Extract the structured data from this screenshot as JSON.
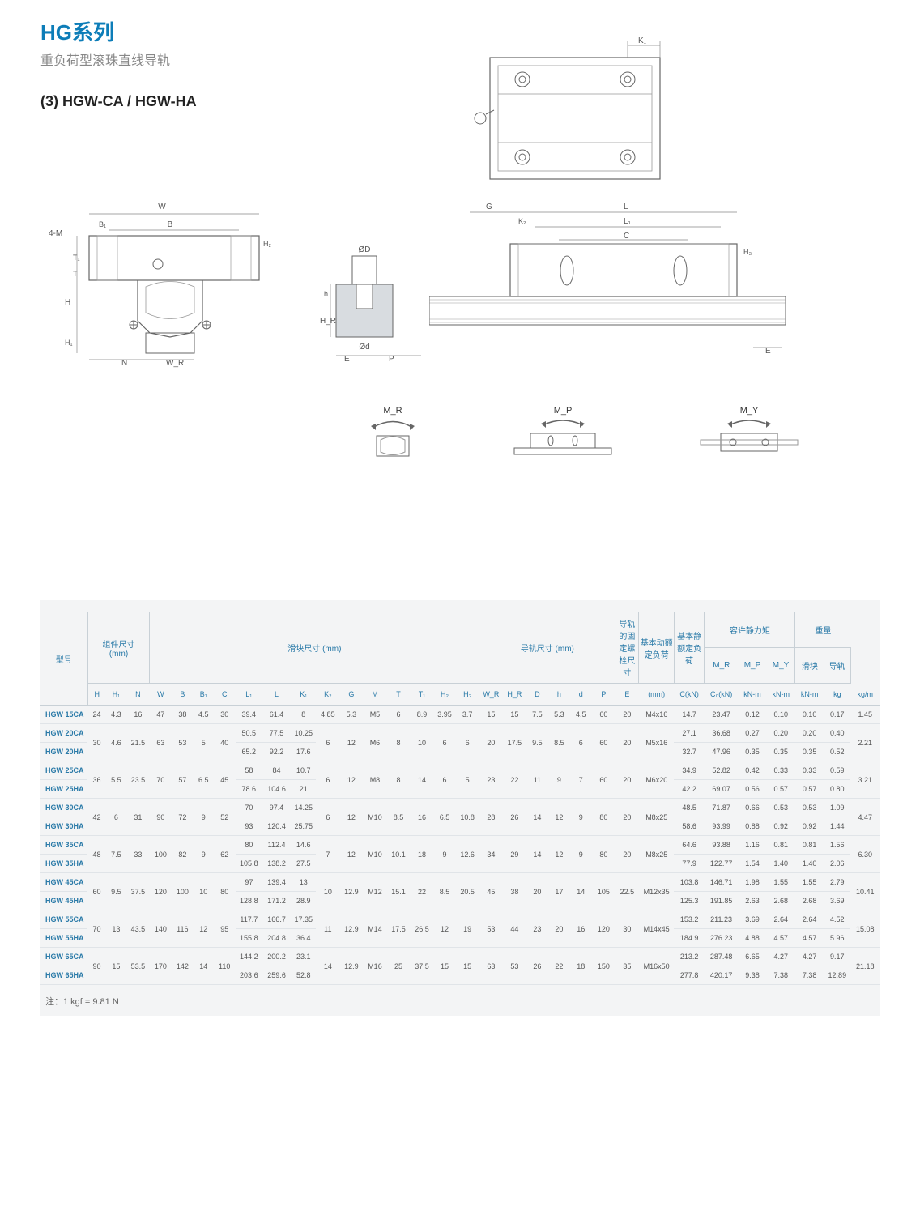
{
  "header": {
    "title": "HG系列",
    "subtitle": "重负荷型滚珠直线导轨",
    "section": "(3) HGW-CA / HGW-HA"
  },
  "diagram_labels": {
    "top": {
      "K1": "K₁"
    },
    "cross": {
      "W": "W",
      "B": "B",
      "B1": "B₁",
      "4M": "4-M",
      "T1": "T₁",
      "T": "T",
      "H": "H",
      "H1": "H₁",
      "H2": "H₂",
      "N": "N",
      "WR": "W_R"
    },
    "rail": {
      "oD": "ØD",
      "od": "Ød",
      "h": "h",
      "HR": "H_R",
      "E": "E",
      "P": "P"
    },
    "side": {
      "G": "G",
      "L": "L",
      "K2": "K₂",
      "L1": "L₁",
      "C": "C",
      "H3": "H₃",
      "E2": "E"
    },
    "moments": {
      "MR": "M_R",
      "MP": "M_P",
      "MY": "M_Y"
    }
  },
  "table": {
    "group_headers": [
      {
        "label": "型号",
        "span": 1
      },
      {
        "label": "组件尺寸",
        "sub": "(mm)",
        "span": 3
      },
      {
        "label": "滑块尺寸 (mm)",
        "span": 14
      },
      {
        "label": "导轨尺寸 (mm)",
        "span": 6
      },
      {
        "label": "导轨的固定螺栓尺寸",
        "span": 1
      },
      {
        "label": "基本动额定负荷",
        "span": 1
      },
      {
        "label": "基本静额定负荷",
        "span": 1
      },
      {
        "label": "容许静力矩",
        "span": 3
      },
      {
        "label": "重量",
        "span": 2
      }
    ],
    "sub_headers_row1": [
      "",
      "",
      "",
      "",
      "",
      "",
      "",
      "",
      "",
      "",
      "",
      "",
      "",
      "",
      "",
      "",
      "",
      "",
      "",
      "",
      "",
      "",
      "",
      "",
      "",
      "",
      "",
      "M_R",
      "M_P",
      "M_Y",
      "滑块",
      "导轨"
    ],
    "sub_headers_row2": [
      "",
      "H",
      "H₁",
      "N",
      "W",
      "B",
      "B₁",
      "C",
      "L₁",
      "L",
      "K₁",
      "K₂",
      "G",
      "M",
      "T",
      "T₁",
      "H₂",
      "H₃",
      "W_R",
      "H_R",
      "D",
      "h",
      "d",
      "P",
      "E",
      "(mm)",
      "C(kN)",
      "C₀(kN)",
      "kN-m",
      "kN-m",
      "kN-m",
      "kg",
      "kg/m"
    ],
    "rows": [
      {
        "model": "HGW 15CA",
        "cells": [
          "24",
          "4.3",
          "16",
          "47",
          "38",
          "4.5",
          "30",
          "39.4",
          "61.4",
          "8",
          "4.85",
          "5.3",
          "M5",
          "6",
          "8.9",
          "3.95",
          "3.7",
          "15",
          "15",
          "7.5",
          "5.3",
          "4.5",
          "60",
          "20",
          "M4x16",
          "14.7",
          "23.47",
          "0.12",
          "0.10",
          "0.10",
          "0.17",
          "1.45"
        ]
      },
      {
        "model": "HGW 20CA",
        "cells": [
          "30",
          "4.6",
          "21.5",
          "63",
          "53",
          "5",
          "40",
          "50.5",
          "77.5",
          "10.25",
          "6",
          "12",
          "M6",
          "8",
          "10",
          "6",
          "6",
          "20",
          "17.5",
          "9.5",
          "8.5",
          "6",
          "60",
          "20",
          "M5x16",
          "27.1",
          "36.68",
          "0.27",
          "0.20",
          "0.20",
          "0.40",
          "2.21"
        ],
        "mergeNext": [
          1,
          1,
          1,
          1,
          1,
          1,
          1,
          0,
          0,
          0,
          1,
          1,
          1,
          1,
          1,
          1,
          1,
          1,
          1,
          1,
          1,
          1,
          1,
          1,
          1,
          0,
          0,
          0,
          0,
          0,
          0,
          1
        ]
      },
      {
        "model": "HGW 20HA",
        "cells": [
          "",
          "",
          "",
          "",
          "",
          "",
          "",
          "65.2",
          "92.2",
          "17.6",
          "",
          "",
          "",
          "",
          "",
          "",
          "",
          "",
          "",
          "",
          "",
          "",
          "",
          "",
          "",
          "32.7",
          "47.96",
          "0.35",
          "0.35",
          "0.35",
          "0.52",
          ""
        ]
      },
      {
        "model": "HGW 25CA",
        "cells": [
          "36",
          "5.5",
          "23.5",
          "70",
          "57",
          "6.5",
          "45",
          "58",
          "84",
          "10.7",
          "6",
          "12",
          "M8",
          "8",
          "14",
          "6",
          "5",
          "23",
          "22",
          "11",
          "9",
          "7",
          "60",
          "20",
          "M6x20",
          "34.9",
          "52.82",
          "0.42",
          "0.33",
          "0.33",
          "0.59",
          "3.21"
        ],
        "mergeNext": [
          1,
          1,
          1,
          1,
          1,
          1,
          1,
          0,
          0,
          0,
          1,
          1,
          1,
          1,
          1,
          1,
          1,
          1,
          1,
          1,
          1,
          1,
          1,
          1,
          1,
          0,
          0,
          0,
          0,
          0,
          0,
          1
        ]
      },
      {
        "model": "HGW 25HA",
        "cells": [
          "",
          "",
          "",
          "",
          "",
          "",
          "",
          "78.6",
          "104.6",
          "21",
          "",
          "",
          "",
          "",
          "",
          "",
          "",
          "",
          "",
          "",
          "",
          "",
          "",
          "",
          "",
          "42.2",
          "69.07",
          "0.56",
          "0.57",
          "0.57",
          "0.80",
          ""
        ]
      },
      {
        "model": "HGW 30CA",
        "cells": [
          "42",
          "6",
          "31",
          "90",
          "72",
          "9",
          "52",
          "70",
          "97.4",
          "14.25",
          "6",
          "12",
          "M10",
          "8.5",
          "16",
          "6.5",
          "10.8",
          "28",
          "26",
          "14",
          "12",
          "9",
          "80",
          "20",
          "M8x25",
          "48.5",
          "71.87",
          "0.66",
          "0.53",
          "0.53",
          "1.09",
          "4.47"
        ],
        "mergeNext": [
          1,
          1,
          1,
          1,
          1,
          1,
          1,
          0,
          0,
          0,
          1,
          1,
          1,
          1,
          1,
          1,
          1,
          1,
          1,
          1,
          1,
          1,
          1,
          1,
          1,
          0,
          0,
          0,
          0,
          0,
          0,
          1
        ]
      },
      {
        "model": "HGW 30HA",
        "cells": [
          "",
          "",
          "",
          "",
          "",
          "",
          "",
          "93",
          "120.4",
          "25.75",
          "",
          "",
          "",
          "",
          "",
          "",
          "",
          "",
          "",
          "",
          "",
          "",
          "",
          "",
          "",
          "58.6",
          "93.99",
          "0.88",
          "0.92",
          "0.92",
          "1.44",
          ""
        ]
      },
      {
        "model": "HGW 35CA",
        "cells": [
          "48",
          "7.5",
          "33",
          "100",
          "82",
          "9",
          "62",
          "80",
          "112.4",
          "14.6",
          "7",
          "12",
          "M10",
          "10.1",
          "18",
          "9",
          "12.6",
          "34",
          "29",
          "14",
          "12",
          "9",
          "80",
          "20",
          "M8x25",
          "64.6",
          "93.88",
          "1.16",
          "0.81",
          "0.81",
          "1.56",
          "6.30"
        ],
        "mergeNext": [
          1,
          1,
          1,
          1,
          1,
          1,
          1,
          0,
          0,
          0,
          1,
          1,
          1,
          1,
          1,
          1,
          1,
          1,
          1,
          1,
          1,
          1,
          1,
          1,
          1,
          0,
          0,
          0,
          0,
          0,
          0,
          1
        ]
      },
      {
        "model": "HGW 35HA",
        "cells": [
          "",
          "",
          "",
          "",
          "",
          "",
          "",
          "105.8",
          "138.2",
          "27.5",
          "",
          "",
          "",
          "",
          "",
          "",
          "",
          "",
          "",
          "",
          "",
          "",
          "",
          "",
          "",
          "77.9",
          "122.77",
          "1.54",
          "1.40",
          "1.40",
          "2.06",
          ""
        ]
      },
      {
        "model": "HGW 45CA",
        "cells": [
          "60",
          "9.5",
          "37.5",
          "120",
          "100",
          "10",
          "80",
          "97",
          "139.4",
          "13",
          "10",
          "12.9",
          "M12",
          "15.1",
          "22",
          "8.5",
          "20.5",
          "45",
          "38",
          "20",
          "17",
          "14",
          "105",
          "22.5",
          "M12x35",
          "103.8",
          "146.71",
          "1.98",
          "1.55",
          "1.55",
          "2.79",
          "10.41"
        ],
        "mergeNext": [
          1,
          1,
          1,
          1,
          1,
          1,
          1,
          0,
          0,
          0,
          1,
          1,
          1,
          1,
          1,
          1,
          1,
          1,
          1,
          1,
          1,
          1,
          1,
          1,
          1,
          0,
          0,
          0,
          0,
          0,
          0,
          1
        ]
      },
      {
        "model": "HGW 45HA",
        "cells": [
          "",
          "",
          "",
          "",
          "",
          "",
          "",
          "128.8",
          "171.2",
          "28.9",
          "",
          "",
          "",
          "",
          "",
          "",
          "",
          "",
          "",
          "",
          "",
          "",
          "",
          "",
          "",
          "125.3",
          "191.85",
          "2.63",
          "2.68",
          "2.68",
          "3.69",
          ""
        ]
      },
      {
        "model": "HGW 55CA",
        "cells": [
          "70",
          "13",
          "43.5",
          "140",
          "116",
          "12",
          "95",
          "117.7",
          "166.7",
          "17.35",
          "11",
          "12.9",
          "M14",
          "17.5",
          "26.5",
          "12",
          "19",
          "53",
          "44",
          "23",
          "20",
          "16",
          "120",
          "30",
          "M14x45",
          "153.2",
          "211.23",
          "3.69",
          "2.64",
          "2.64",
          "4.52",
          "15.08"
        ],
        "mergeNext": [
          1,
          1,
          1,
          1,
          1,
          1,
          1,
          0,
          0,
          0,
          1,
          1,
          1,
          1,
          1,
          1,
          1,
          1,
          1,
          1,
          1,
          1,
          1,
          1,
          1,
          0,
          0,
          0,
          0,
          0,
          0,
          1
        ]
      },
      {
        "model": "HGW 55HA",
        "cells": [
          "",
          "",
          "",
          "",
          "",
          "",
          "",
          "155.8",
          "204.8",
          "36.4",
          "",
          "",
          "",
          "",
          "",
          "",
          "",
          "",
          "",
          "",
          "",
          "",
          "",
          "",
          "",
          "184.9",
          "276.23",
          "4.88",
          "4.57",
          "4.57",
          "5.96",
          ""
        ]
      },
      {
        "model": "HGW 65CA",
        "cells": [
          "90",
          "15",
          "53.5",
          "170",
          "142",
          "14",
          "110",
          "144.2",
          "200.2",
          "23.1",
          "14",
          "12.9",
          "M16",
          "25",
          "37.5",
          "15",
          "15",
          "63",
          "53",
          "26",
          "22",
          "18",
          "150",
          "35",
          "M16x50",
          "213.2",
          "287.48",
          "6.65",
          "4.27",
          "4.27",
          "9.17",
          "21.18"
        ],
        "mergeNext": [
          1,
          1,
          1,
          1,
          1,
          1,
          1,
          0,
          0,
          0,
          1,
          1,
          1,
          1,
          1,
          1,
          1,
          1,
          1,
          1,
          1,
          1,
          1,
          1,
          1,
          0,
          0,
          0,
          0,
          0,
          0,
          1
        ]
      },
      {
        "model": "HGW 65HA",
        "cells": [
          "",
          "",
          "",
          "",
          "",
          "",
          "",
          "203.6",
          "259.6",
          "52.8",
          "",
          "",
          "",
          "",
          "",
          "",
          "",
          "",
          "",
          "",
          "",
          "",
          "",
          "",
          "",
          "277.8",
          "420.17",
          "9.38",
          "7.38",
          "7.38",
          "12.89",
          ""
        ]
      }
    ]
  },
  "footnote": "注：1 kgf = 9.81 N",
  "colors": {
    "accent": "#0d7db8",
    "header": "#2a7aa8",
    "grid": "#c8d0d6",
    "tablebg": "#f3f4f5"
  }
}
